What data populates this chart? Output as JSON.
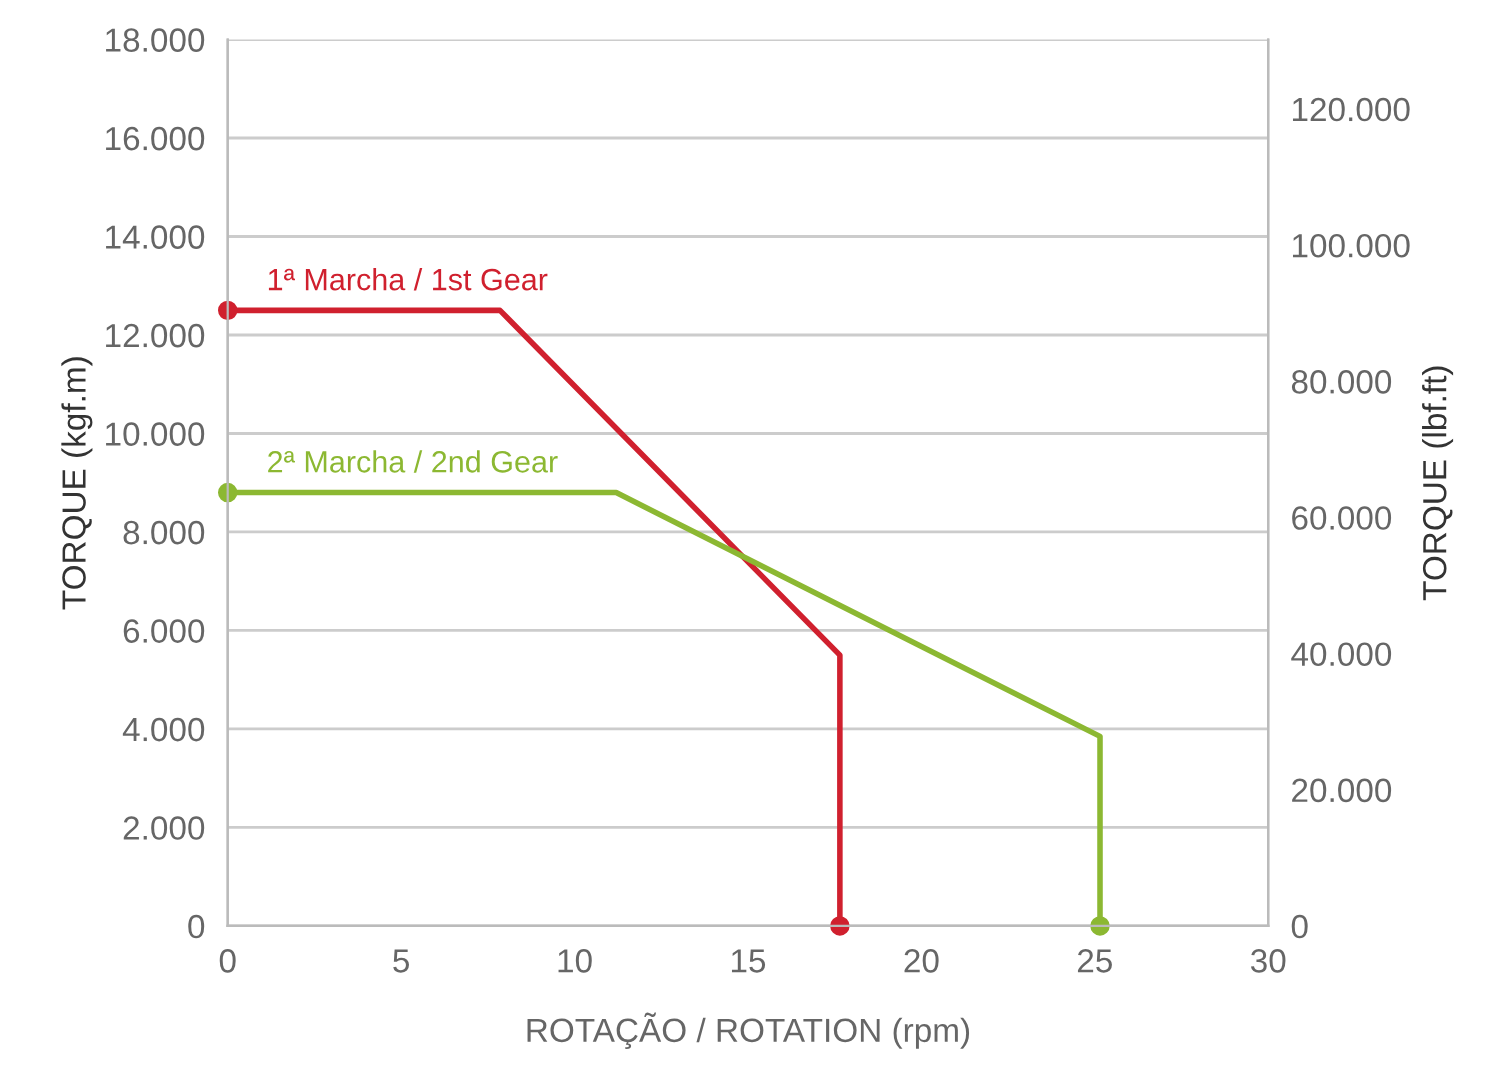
{
  "chart_data": {
    "type": "line",
    "xlabel": "ROTAÇÃO / ROTATION (rpm)",
    "ylabel": "TORQUE (kgf.m)",
    "y2label": "TORQUE (lbf.ft)",
    "xlim": [
      0,
      30
    ],
    "xticks": [
      0,
      5,
      10,
      15,
      20,
      25,
      30
    ],
    "ylim": [
      0,
      18000
    ],
    "yticks": [
      {
        "value": 0,
        "label": "0"
      },
      {
        "value": 2000,
        "label": "2.000"
      },
      {
        "value": 4000,
        "label": "4.000"
      },
      {
        "value": 6000,
        "label": "6.000"
      },
      {
        "value": 8000,
        "label": "8.000"
      },
      {
        "value": 10000,
        "label": "10.000"
      },
      {
        "value": 12000,
        "label": "12.000"
      },
      {
        "value": 14000,
        "label": "14.000"
      },
      {
        "value": 16000,
        "label": "16.000"
      },
      {
        "value": 18000,
        "label": "18.000"
      }
    ],
    "y2lim": [
      0,
      130200
    ],
    "y2ticks": [
      {
        "value": 0,
        "label": "0"
      },
      {
        "value": 20000,
        "label": "20.000"
      },
      {
        "value": 40000,
        "label": "40.000"
      },
      {
        "value": 60000,
        "label": "60.000"
      },
      {
        "value": 80000,
        "label": "80.000"
      },
      {
        "value": 100000,
        "label": "100.000"
      },
      {
        "value": 120000,
        "label": "120.000"
      }
    ],
    "grid": "y",
    "legend": false,
    "marker": "circle",
    "line_style": "solid",
    "series": [
      {
        "name": "1ª Marcha / 1st Gear",
        "color": "#d0202e",
        "x": [
          0,
          7.85,
          17.65,
          17.65
        ],
        "values": [
          12500,
          12500,
          5500,
          0
        ]
      },
      {
        "name": "2ª Marcha / 2nd Gear",
        "color": "#8cb832",
        "x": [
          0,
          11.2,
          25.15,
          25.15
        ],
        "values": [
          8800,
          8800,
          3850,
          0
        ]
      }
    ]
  }
}
